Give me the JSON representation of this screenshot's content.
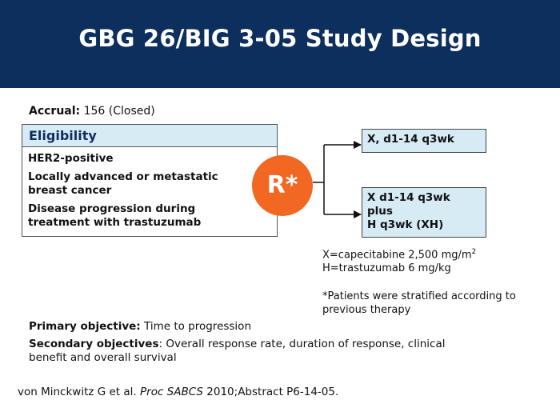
{
  "title": "GBG 26/BIG 3-05 Study Design",
  "accrual": {
    "label": "Accrual:",
    "value": "156 (Closed)"
  },
  "eligibility": {
    "heading": "Eligibility",
    "items": [
      "HER2-positive",
      "Locally advanced or metastatic breast cancer",
      "Disease progression during treatment with trastuzumab"
    ]
  },
  "randomization": {
    "label": "R*"
  },
  "arms": [
    {
      "lines": [
        "X, d1-14 q3wk"
      ]
    },
    {
      "lines": [
        "X d1-14 q3wk",
        "plus",
        "H q3wk (XH)"
      ]
    }
  ],
  "definitions": {
    "x_def": "X=capecitabine 2,500 mg/m",
    "x_sup": "2",
    "h_def": "H=trastuzumab 6 mg/kg"
  },
  "note": "*Patients were stratified according to previous therapy",
  "objectives": {
    "primary_label": "Primary objective:",
    "primary_text": "Time to progression",
    "secondary_label": "Secondary objectives",
    "secondary_text": ": Overall response rate, duration of response, clinical benefit and overall survival"
  },
  "reference": {
    "before": "von Minckwitz G et al. ",
    "journal": "Proc SABCS",
    "after": " 2010;Abstract P6-14-05."
  },
  "colors": {
    "header_bg": "#0d2f5e",
    "accent": "#f26722",
    "box_fill": "#d7ebf5"
  }
}
